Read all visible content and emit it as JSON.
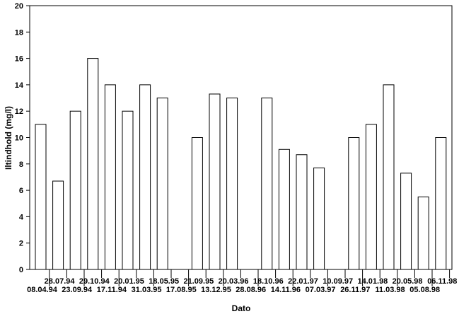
{
  "chart_data": {
    "type": "bar",
    "title": "",
    "xlabel": "Dato",
    "ylabel": "Iltindhold (mg/l)",
    "ylim": [
      0,
      20
    ],
    "yticks": [
      0,
      2,
      4,
      6,
      8,
      10,
      12,
      14,
      16,
      18,
      20
    ],
    "grid": false,
    "categories": [
      "08.04.94",
      "28.07.94",
      "23.09.94",
      "29.10.94",
      "17.11.94",
      "20.01.95",
      "31.03.95",
      "18.05.95",
      "17.08.95",
      "21.09.95",
      "13.12.95",
      "20.03.96",
      "28.08.96",
      "18.10.96",
      "14.11.96",
      "22.01.97",
      "07.03.97",
      "10.09.97",
      "26.11.97",
      "14.01.98",
      "11.03.98",
      "20.05.98",
      "05.08.98",
      "06.11.98"
    ],
    "values": [
      11,
      6.7,
      12,
      16,
      14,
      12,
      14,
      13,
      null,
      10,
      13.3,
      13,
      null,
      13,
      9.1,
      8.7,
      7.7,
      null,
      10,
      11,
      14,
      7.3,
      5.5,
      10
    ]
  }
}
